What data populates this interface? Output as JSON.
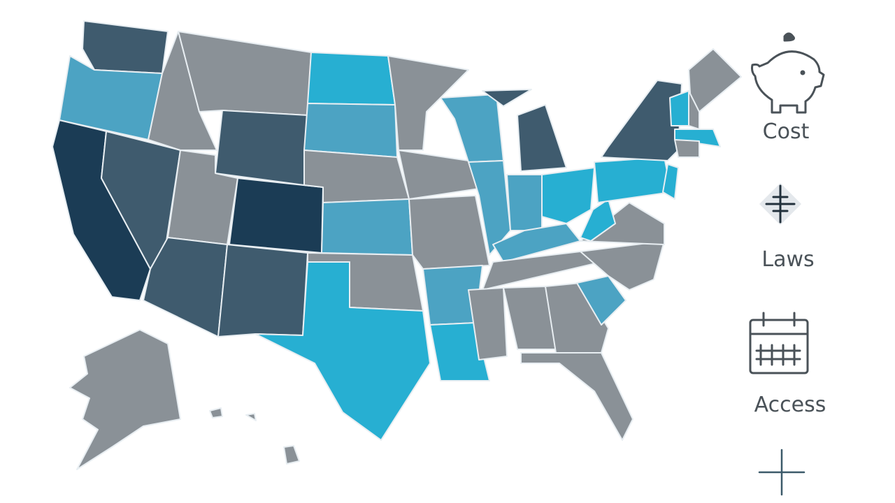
{
  "sidebar": {
    "items": [
      {
        "label": "Cost"
      },
      {
        "label": "Laws"
      },
      {
        "label": "Access"
      }
    ]
  }
}
